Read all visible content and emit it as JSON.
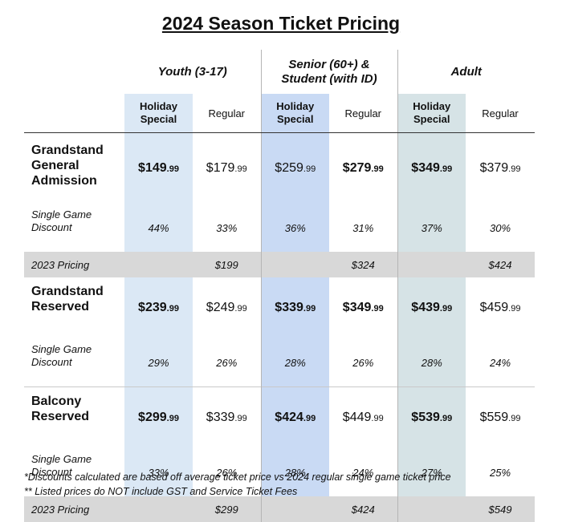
{
  "title": "2024 Season Ticket Pricing",
  "groups": [
    "Youth (3-17)",
    "Senior (60+) &\nStudent (with ID)",
    "Adult"
  ],
  "sub_holiday": "Holiday\nSpecial",
  "sub_regular": "Regular",
  "rows": {
    "ga": {
      "label": "Grandstand\nGeneral\nAdmission",
      "prices": [
        {
          "d": "$149",
          "c": ".99"
        },
        {
          "d": "$179",
          "c": ".99"
        },
        {
          "d": "$259",
          "c": ".99"
        },
        {
          "d": "$279",
          "c": ".99"
        },
        {
          "d": "$349",
          "c": ".99"
        },
        {
          "d": "$379",
          "c": ".99"
        }
      ],
      "disc_label": "Single Game\nDiscount",
      "disc": [
        "44%",
        "33%",
        "36%",
        "31%",
        "37%",
        "30%"
      ]
    },
    "prev1": {
      "label": "2023 Pricing",
      "values": [
        "$199",
        "$324",
        "$424"
      ]
    },
    "res": {
      "label": "Grandstand\nReserved",
      "prices": [
        {
          "d": "$239",
          "c": ".99"
        },
        {
          "d": "$249",
          "c": ".99"
        },
        {
          "d": "$339",
          "c": ".99"
        },
        {
          "d": "$349",
          "c": ".99"
        },
        {
          "d": "$439",
          "c": ".99"
        },
        {
          "d": "$459",
          "c": ".99"
        }
      ],
      "disc_label": "Single Game\nDiscount",
      "disc": [
        "29%",
        "26%",
        "28%",
        "26%",
        "28%",
        "24%"
      ]
    },
    "bal": {
      "label": "Balcony\nReserved",
      "prices": [
        {
          "d": "$299",
          "c": ".99"
        },
        {
          "d": "$339",
          "c": ".99"
        },
        {
          "d": "$424",
          "c": ".99"
        },
        {
          "d": "$449",
          "c": ".99"
        },
        {
          "d": "$539",
          "c": ".99"
        },
        {
          "d": "$559",
          "c": ".99"
        }
      ],
      "disc_label": "Single Game\nDiscount",
      "disc": [
        "33%",
        "26%",
        "28%",
        "24%",
        "27%",
        "25%"
      ]
    },
    "prev2": {
      "label": "2023 Pricing",
      "values": [
        "$299",
        "$424",
        "$549"
      ]
    }
  },
  "notes": [
    "*Discounts calculated are based off average ticket price vs 2024 regular single game ticket price",
    "** Listed prices do NOT include GST and Service Ticket Fees"
  ],
  "colors": {
    "youth_holiday": "#dbe8f5",
    "senior_holiday": "#c9daf4",
    "adult_holiday": "#d6e3e6",
    "prior_pricing_row": "#d8d8d8"
  }
}
